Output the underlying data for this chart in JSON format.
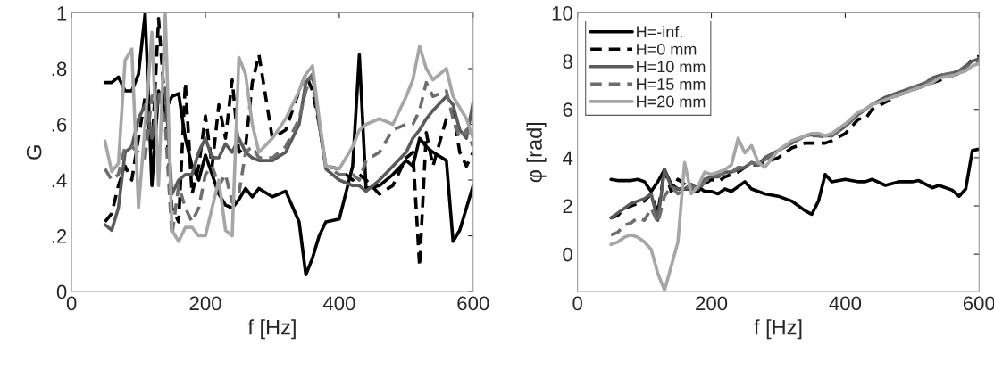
{
  "chart_data": [
    {
      "type": "line",
      "xlabel": "f [Hz]",
      "ylabel": "G",
      "xlim": [
        0,
        600
      ],
      "xticks": [
        0,
        200,
        400,
        600
      ],
      "ylim": [
        0,
        1
      ],
      "yticks": [
        0,
        {
          "value": 0.2,
          "label": ".2"
        },
        {
          "value": 0.4,
          "label": ".4"
        },
        {
          "value": 0.6,
          "label": ".6"
        },
        {
          "value": 0.8,
          "label": ".8"
        },
        1
      ],
      "grid": false,
      "legend": false,
      "x": [
        50,
        60,
        70,
        80,
        90,
        100,
        110,
        120,
        130,
        140,
        150,
        160,
        170,
        180,
        190,
        200,
        210,
        220,
        230,
        240,
        250,
        260,
        270,
        280,
        300,
        320,
        340,
        350,
        360,
        370,
        380,
        400,
        420,
        430,
        440,
        460,
        480,
        500,
        510,
        520,
        530,
        540,
        560,
        570,
        580,
        590,
        600
      ],
      "series": [
        {
          "color": "#000000",
          "line_style": "solid",
          "values": [
            0.75,
            0.75,
            0.77,
            0.72,
            0.72,
            0.78,
            1.0,
            0.38,
            0.72,
            0.65,
            0.7,
            0.71,
            0.55,
            0.45,
            0.4,
            0.49,
            0.42,
            0.35,
            0.31,
            0.3,
            0.33,
            0.37,
            0.34,
            0.37,
            0.34,
            0.36,
            0.25,
            0.06,
            0.12,
            0.2,
            0.25,
            0.26,
            0.45,
            0.85,
            0.37,
            0.38,
            0.42,
            0.47,
            0.45,
            0.55,
            0.52,
            0.5,
            0.47,
            0.18,
            0.22,
            0.3,
            0.38
          ]
        },
        {
          "color": "#000000",
          "line_style": "dashed",
          "values": [
            0.25,
            0.28,
            0.38,
            0.45,
            0.4,
            0.55,
            0.7,
            0.5,
            0.98,
            0.65,
            0.3,
            0.25,
            0.75,
            0.35,
            0.45,
            0.63,
            0.45,
            0.67,
            0.55,
            0.76,
            0.5,
            0.52,
            0.75,
            0.85,
            0.55,
            0.58,
            0.72,
            0.78,
            0.72,
            0.6,
            0.45,
            0.44,
            0.4,
            0.42,
            0.4,
            0.35,
            0.38,
            0.48,
            0.5,
            0.09,
            0.57,
            0.45,
            0.62,
            0.65,
            0.5,
            0.45,
            0.5
          ]
        },
        {
          "color": "#5a5a5a",
          "line_style": "solid",
          "values": [
            0.24,
            0.22,
            0.3,
            0.5,
            0.52,
            0.62,
            0.67,
            0.55,
            0.7,
            0.73,
            0.35,
            0.4,
            0.42,
            0.42,
            0.5,
            0.55,
            0.48,
            0.48,
            0.53,
            0.5,
            0.55,
            0.5,
            0.48,
            0.47,
            0.47,
            0.5,
            0.6,
            0.75,
            0.78,
            0.6,
            0.44,
            0.4,
            0.38,
            0.38,
            0.36,
            0.4,
            0.45,
            0.5,
            0.55,
            0.58,
            0.62,
            0.65,
            0.7,
            0.67,
            0.58,
            0.55,
            0.68
          ]
        },
        {
          "color": "#6e6e6e",
          "line_style": "dashed",
          "values": [
            0.44,
            0.4,
            0.42,
            0.52,
            0.52,
            0.5,
            0.48,
            0.7,
            0.72,
            0.6,
            0.2,
            0.38,
            0.3,
            0.25,
            0.3,
            0.42,
            0.45,
            0.38,
            0.42,
            0.32,
            0.35,
            0.5,
            0.52,
            0.48,
            0.48,
            0.52,
            0.62,
            0.72,
            0.78,
            0.6,
            0.45,
            0.42,
            0.42,
            0.4,
            0.47,
            0.5,
            0.58,
            0.6,
            0.6,
            0.65,
            0.75,
            0.7,
            0.72,
            0.62,
            0.55,
            0.58,
            0.52
          ]
        },
        {
          "color": "#a6a6a6",
          "line_style": "solid",
          "values": [
            0.54,
            0.43,
            0.46,
            0.83,
            0.87,
            0.3,
            0.6,
            0.93,
            0.38,
            1.0,
            0.22,
            0.18,
            0.23,
            0.23,
            0.2,
            0.2,
            0.3,
            0.4,
            0.22,
            0.2,
            0.84,
            0.78,
            0.6,
            0.5,
            0.55,
            0.62,
            0.72,
            0.78,
            0.81,
            0.62,
            0.45,
            0.44,
            0.52,
            0.58,
            0.6,
            0.62,
            0.6,
            0.7,
            0.76,
            0.88,
            0.8,
            0.76,
            0.8,
            0.7,
            0.66,
            0.62,
            0.55
          ]
        }
      ]
    },
    {
      "type": "line",
      "xlabel": "f [Hz]",
      "ylabel": "φ [rad]",
      "xlim": [
        0,
        600
      ],
      "xticks": [
        0,
        200,
        400,
        600
      ],
      "ylim": [
        -1.55,
        10
      ],
      "yticks": [
        0,
        2,
        4,
        6,
        8,
        10
      ],
      "grid": false,
      "legend": "top left",
      "x": [
        50,
        60,
        70,
        80,
        90,
        100,
        110,
        120,
        130,
        140,
        150,
        160,
        170,
        180,
        190,
        200,
        210,
        220,
        230,
        240,
        250,
        260,
        270,
        280,
        300,
        320,
        340,
        350,
        360,
        370,
        380,
        400,
        420,
        430,
        440,
        460,
        480,
        500,
        510,
        520,
        530,
        540,
        560,
        570,
        580,
        590,
        600
      ],
      "series": [
        {
          "name": "H=-inf.",
          "color": "#000000",
          "line_style": "solid",
          "values": [
            3.1,
            3.05,
            3.05,
            3.05,
            3.1,
            3.0,
            2.6,
            3.0,
            3.5,
            2.9,
            2.7,
            2.7,
            2.7,
            2.8,
            2.6,
            2.6,
            2.5,
            2.7,
            2.6,
            2.8,
            3.0,
            2.7,
            2.6,
            2.5,
            2.4,
            2.2,
            1.8,
            1.65,
            2.2,
            3.3,
            3.0,
            3.1,
            3.0,
            3.0,
            3.1,
            2.85,
            3.0,
            3.0,
            3.05,
            2.9,
            2.75,
            2.85,
            2.65,
            2.4,
            2.7,
            4.3,
            4.35
          ]
        },
        {
          "name": "H=0 mm",
          "color": "#000000",
          "line_style": "dashed",
          "values": [
            1.5,
            1.6,
            1.9,
            2.0,
            2.1,
            2.2,
            2.5,
            1.7,
            3.5,
            2.6,
            3.1,
            2.9,
            2.6,
            2.6,
            2.9,
            3.1,
            3.0,
            3.2,
            3.3,
            3.4,
            3.6,
            3.7,
            3.7,
            3.8,
            4.0,
            4.4,
            4.6,
            4.6,
            4.6,
            4.6,
            4.7,
            5.0,
            5.6,
            5.6,
            6.0,
            6.3,
            6.6,
            6.8,
            6.9,
            7.0,
            7.1,
            7.2,
            7.4,
            7.5,
            7.7,
            8.1,
            8.2
          ]
        },
        {
          "name": "H=10 mm",
          "color": "#5a5a5a",
          "line_style": "solid",
          "values": [
            1.5,
            1.7,
            1.9,
            2.1,
            2.2,
            2.3,
            2.5,
            1.4,
            3.5,
            2.8,
            2.7,
            2.7,
            2.9,
            2.7,
            3.1,
            3.2,
            3.2,
            3.4,
            3.4,
            3.5,
            3.6,
            3.8,
            3.7,
            4.0,
            4.3,
            4.6,
            4.9,
            4.95,
            4.9,
            4.9,
            4.9,
            5.3,
            5.8,
            6.0,
            6.2,
            6.5,
            6.7,
            6.9,
            7.0,
            7.1,
            7.3,
            7.4,
            7.5,
            7.6,
            7.8,
            8.0,
            8.1
          ]
        },
        {
          "name": "H=15 mm",
          "color": "#6e6e6e",
          "line_style": "dashed",
          "values": [
            0.8,
            0.9,
            1.2,
            1.3,
            1.5,
            1.4,
            1.9,
            1.3,
            2.4,
            2.8,
            2.5,
            2.7,
            2.8,
            2.6,
            3.0,
            3.2,
            3.3,
            3.3,
            3.4,
            3.6,
            3.6,
            3.8,
            3.7,
            3.9,
            4.3,
            4.6,
            4.9,
            4.9,
            4.9,
            4.85,
            4.9,
            5.3,
            5.8,
            6.0,
            6.2,
            6.4,
            6.6,
            6.9,
            7.0,
            7.1,
            7.2,
            7.4,
            7.5,
            7.6,
            7.7,
            7.9,
            8.0
          ]
        },
        {
          "name": "H=20 mm",
          "color": "#a6a6a6",
          "line_style": "solid",
          "values": [
            0.4,
            0.5,
            0.7,
            0.8,
            0.7,
            0.5,
            0.2,
            -0.8,
            -1.5,
            -0.5,
            0.5,
            3.8,
            2.5,
            2.8,
            3.4,
            3.3,
            3.4,
            3.5,
            3.7,
            4.8,
            4.2,
            4.5,
            3.8,
            3.6,
            4.3,
            4.7,
            4.9,
            5.0,
            5.0,
            4.9,
            5.0,
            5.4,
            5.9,
            6.0,
            6.2,
            6.4,
            6.6,
            6.8,
            6.9,
            7.0,
            7.1,
            7.3,
            7.4,
            7.5,
            7.6,
            7.8,
            7.9
          ]
        }
      ]
    }
  ]
}
